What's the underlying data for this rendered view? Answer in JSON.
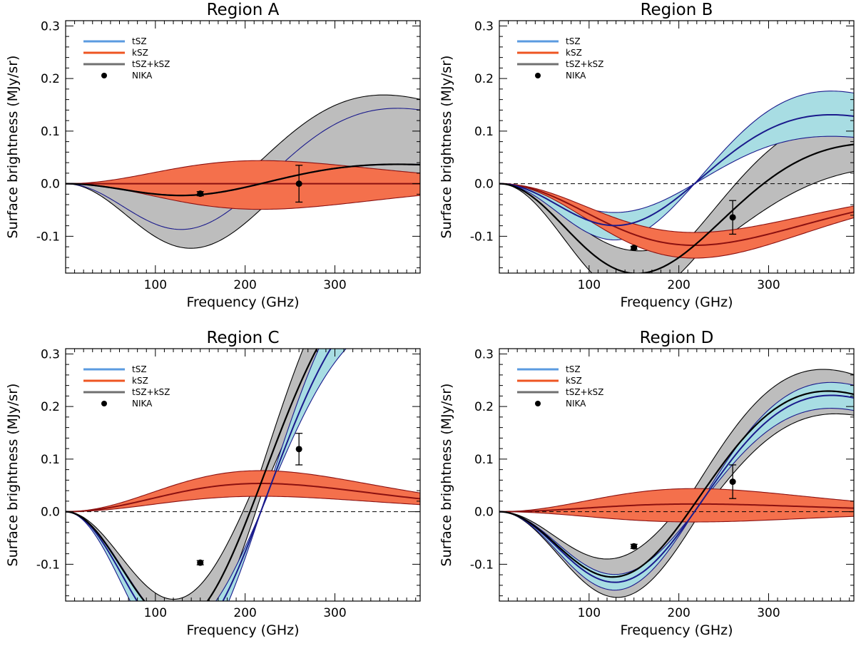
{
  "figure": {
    "xlabel": "Frequency (GHz)",
    "ylabel": "Surface brightness (MJy/sr)"
  },
  "colors": {
    "tsz_line": "#1a1a8c",
    "tsz_band": "#a8dde3",
    "tsz_legend": "#5b9be0",
    "ksz_line": "#8b1010",
    "ksz_band": "#f4704c",
    "ksz_legend": "#ee5522",
    "tot_line": "#000000",
    "tot_band": "#bdbdbd",
    "tot_legend": "#707070",
    "zero_line": "#000000"
  },
  "chart_data": [
    {
      "type": "line",
      "title": "Region A",
      "xlabel": "Frequency (GHz)",
      "ylabel": "Surface brightness (MJy/sr)",
      "xlim": [
        0,
        395
      ],
      "ylim": [
        -0.17,
        0.31
      ],
      "x_ticks": [
        "100",
        "200",
        "300"
      ],
      "y_ticks": [
        "-0.1",
        "0.0",
        "0.1",
        "0.2",
        "0.3"
      ],
      "zero_line": "dashed",
      "legend": {
        "placement": "top-left",
        "entries": [
          "tSZ",
          "kSZ",
          "tSZ+kSZ",
          "NIKA"
        ]
      },
      "model": {
        "tsz_y": 0.09,
        "tsz_lo": 0.05,
        "tsz_hi": 0.35,
        "ksz": 0.0,
        "ksz_lo": -1.0,
        "ksz_hi": 0.9
      },
      "band_visibility": {
        "tSZ": false,
        "kSZ": true,
        "tSZ+kSZ": true
      },
      "nika": [
        {
          "x": 150,
          "y": -0.019,
          "err": 0.004
        },
        {
          "x": 260,
          "y": 0.0,
          "err": 0.035
        }
      ]
    },
    {
      "type": "line",
      "title": "Region B",
      "xlabel": "Frequency (GHz)",
      "ylabel": "Surface brightness (MJy/sr)",
      "xlim": [
        0,
        395
      ],
      "ylim": [
        -0.17,
        0.31
      ],
      "x_ticks": [
        "100",
        "200",
        "300"
      ],
      "y_ticks": [
        "-0.1",
        "0.0",
        "0.1",
        "0.2",
        "0.3"
      ],
      "zero_line": "dashed",
      "legend": {
        "placement": "top-left",
        "entries": [
          "tSZ",
          "kSZ",
          "tSZ+kSZ",
          "NIKA"
        ]
      },
      "model": {
        "tsz_y": 0.32,
        "tsz_lo": 0.22,
        "tsz_hi": 0.43,
        "ksz": -2.4,
        "ksz_lo": -2.9,
        "ksz_hi": -1.9
      },
      "band_visibility": {
        "tSZ": true,
        "kSZ": true,
        "tSZ+kSZ": true
      },
      "nika": [
        {
          "x": 150,
          "y": -0.122,
          "err": 0.003
        },
        {
          "x": 260,
          "y": -0.064,
          "err": 0.032
        }
      ]
    },
    {
      "type": "line",
      "title": "Region C",
      "xlabel": "Frequency (GHz)",
      "ylabel": "Surface brightness (MJy/sr)",
      "xlim": [
        0,
        395
      ],
      "ylim": [
        -0.17,
        0.31
      ],
      "x_ticks": [
        "100",
        "200",
        "300"
      ],
      "y_ticks": [
        "-0.1",
        "0.0",
        "0.1",
        "0.2",
        "0.3"
      ],
      "zero_line": "dashed",
      "legend": {
        "placement": "top-left",
        "entries": [
          "tSZ",
          "kSZ",
          "tSZ+kSZ",
          "NIKA"
        ]
      },
      "model": {
        "tsz_y": 1.0,
        "tsz_lo": 0.88,
        "tsz_hi": 1.15,
        "ksz": 1.1,
        "ksz_lo": 0.6,
        "ksz_hi": 1.6
      },
      "band_visibility": {
        "tSZ": true,
        "kSZ": true,
        "tSZ+kSZ": true
      },
      "nika": [
        {
          "x": 150,
          "y": -0.097,
          "err": 0.004
        },
        {
          "x": 260,
          "y": 0.119,
          "err": 0.03
        }
      ]
    },
    {
      "type": "line",
      "title": "Region D",
      "xlabel": "Frequency (GHz)",
      "ylabel": "Surface brightness (MJy/sr)",
      "xlim": [
        0,
        395
      ],
      "ylim": [
        -0.17,
        0.31
      ],
      "x_ticks": [
        "100",
        "200",
        "300"
      ],
      "y_ticks": [
        "-0.1",
        "0.0",
        "0.1",
        "0.2",
        "0.3"
      ],
      "zero_line": "dashed",
      "legend": {
        "placement": "top-left",
        "entries": [
          "tSZ",
          "kSZ",
          "tSZ+kSZ",
          "NIKA"
        ]
      },
      "model": {
        "tsz_y": 0.54,
        "tsz_lo": 0.48,
        "tsz_hi": 0.6,
        "ksz": 0.3,
        "ksz_lo": -0.4,
        "ksz_hi": 0.9
      },
      "band_visibility": {
        "tSZ": true,
        "kSZ": true,
        "tSZ+kSZ": true
      },
      "nika": [
        {
          "x": 150,
          "y": -0.066,
          "err": 0.004
        },
        {
          "x": 260,
          "y": 0.057,
          "err": 0.032
        }
      ]
    }
  ]
}
